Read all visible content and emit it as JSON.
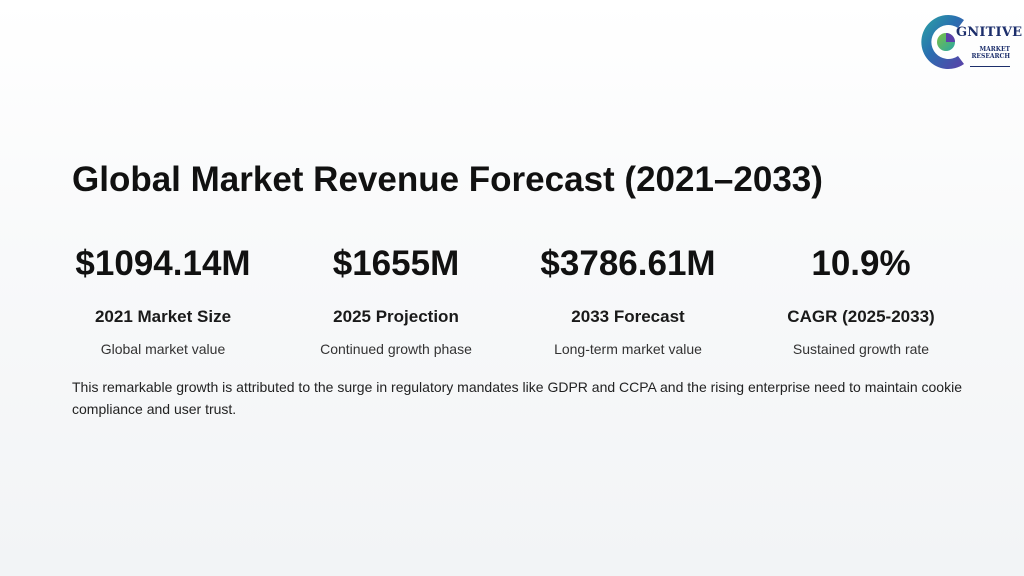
{
  "logo": {
    "name": "GNITIVE",
    "tagline_line1": "MARKET",
    "tagline_line2": "RESEARCH"
  },
  "title": "Global Market Revenue Forecast (2021–2033)",
  "stats": [
    {
      "value": "$1094.14M",
      "label": "2021 Market Size",
      "desc": "Global market value"
    },
    {
      "value": "$1655M",
      "label": "2025 Projection",
      "desc": "Continued growth phase"
    },
    {
      "value": "$3786.61M",
      "label": "2033 Forecast",
      "desc": "Long-term market value"
    },
    {
      "value": "10.9%",
      "label": "CAGR (2025-2033)",
      "desc": "Sustained growth rate"
    }
  ],
  "paragraph": "This remarkable growth is attributed to the surge in regulatory mandates like GDPR and CCPA and the rising enterprise need to maintain cookie compliance and user trust.",
  "colors": {
    "text": "#111111",
    "logo_navy": "#1c2e6b",
    "logo_teal": "#2aa6a3",
    "logo_purple": "#5b3fa8",
    "logo_green": "#7bc043"
  }
}
